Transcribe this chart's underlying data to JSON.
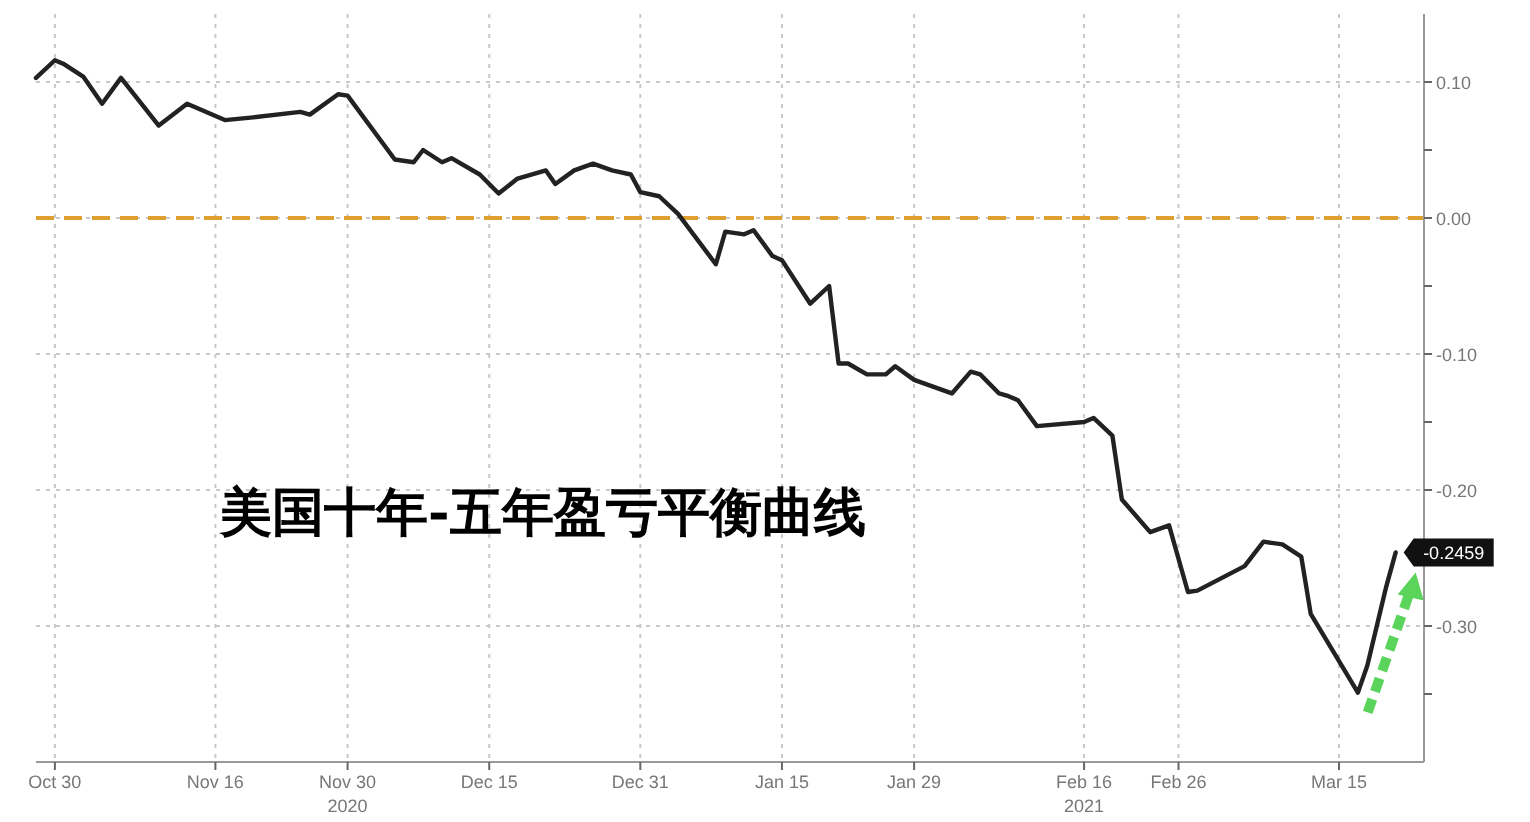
{
  "chart_data": {
    "type": "line",
    "title": "美国十年-五年盈亏平衡曲线",
    "series": [
      {
        "color": "#222222",
        "x": [
          "2020-10-28",
          "2020-10-30",
          "2020-10-31",
          "2020-11-02",
          "2020-11-04",
          "2020-11-06",
          "2020-11-10",
          "2020-11-13",
          "2020-11-17",
          "2020-11-20",
          "2020-11-25",
          "2020-11-26",
          "2020-11-29",
          "2020-11-30",
          "2020-12-05",
          "2020-12-07",
          "2020-12-08",
          "2020-12-10",
          "2020-12-11",
          "2020-12-14",
          "2020-12-16",
          "2020-12-18",
          "2020-12-21",
          "2020-12-22",
          "2020-12-24",
          "2020-12-26",
          "2020-12-28",
          "2020-12-30",
          "2020-12-31",
          "2021-01-02",
          "2021-01-04",
          "2021-01-08",
          "2021-01-09",
          "2021-01-11",
          "2021-01-12",
          "2021-01-14",
          "2021-01-15",
          "2021-01-18",
          "2021-01-20",
          "2021-01-21",
          "2021-01-22",
          "2021-01-24",
          "2021-01-26",
          "2021-01-27",
          "2021-01-29",
          "2021-01-31",
          "2021-02-02",
          "2021-02-04",
          "2021-02-05",
          "2021-02-07",
          "2021-02-08",
          "2021-02-09",
          "2021-02-11",
          "2021-02-16",
          "2021-02-17",
          "2021-02-19",
          "2021-02-20",
          "2021-02-23",
          "2021-02-25",
          "2021-02-27",
          "2021-02-28",
          "2021-03-05",
          "2021-03-07",
          "2021-03-09",
          "2021-03-11",
          "2021-03-12",
          "2021-03-17",
          "2021-03-18",
          "2021-03-20",
          "2021-03-21"
        ],
        "values": [
          0.103,
          0.116,
          0.113,
          0.104,
          0.084,
          0.103,
          0.068,
          0.084,
          0.072,
          0.074,
          0.078,
          0.076,
          0.091,
          0.09,
          0.043,
          0.041,
          0.05,
          0.041,
          0.044,
          0.032,
          0.018,
          0.029,
          0.035,
          0.025,
          0.035,
          0.04,
          0.035,
          0.032,
          0.019,
          0.016,
          0.003,
          -0.034,
          -0.01,
          -0.012,
          -0.009,
          -0.028,
          -0.031,
          -0.063,
          -0.05,
          -0.107,
          -0.107,
          -0.115,
          -0.115,
          -0.109,
          -0.119,
          -0.124,
          -0.129,
          -0.113,
          -0.115,
          -0.129,
          -0.131,
          -0.134,
          -0.153,
          -0.15,
          -0.147,
          -0.16,
          -0.207,
          -0.231,
          -0.226,
          -0.275,
          -0.274,
          -0.256,
          -0.238,
          -0.24,
          -0.249,
          -0.291,
          -0.349,
          -0.329,
          -0.271,
          -0.2459
        ],
        "value_labels": [
          null,
          null,
          null,
          null,
          null,
          null,
          null,
          null,
          null,
          null,
          null,
          null,
          null,
          null,
          null,
          null,
          null,
          null,
          null,
          null,
          null,
          null,
          null,
          null,
          null,
          null,
          null,
          null,
          null,
          null,
          null,
          null,
          null,
          null,
          null,
          null,
          null,
          null,
          null,
          null,
          null,
          null,
          null,
          null,
          null,
          null,
          null,
          null,
          null,
          null,
          null,
          null,
          null,
          null,
          null,
          null,
          null,
          null,
          null,
          null,
          null,
          null,
          null,
          null,
          null,
          null,
          null,
          null,
          null,
          "-0.2459"
        ]
      }
    ],
    "xlim": [
      "2020-10-28",
      "2021-03-24"
    ],
    "xticks": [
      {
        "value": "2020-10-30",
        "label": "Oct 30"
      },
      {
        "value": "2020-11-16",
        "label": "Nov 16"
      },
      {
        "value": "2020-11-30",
        "label": "Nov 30\n2020"
      },
      {
        "value": "2020-12-15",
        "label": "Dec 15"
      },
      {
        "value": "2020-12-31",
        "label": "Dec 31"
      },
      {
        "value": "2021-01-15",
        "label": "Jan 15"
      },
      {
        "value": "2021-01-29",
        "label": "Jan 29"
      },
      {
        "value": "2021-02-16",
        "label": "Feb 16\n2021"
      },
      {
        "value": "2021-02-26",
        "label": "Feb 26"
      },
      {
        "value": "2021-03-15",
        "label": "Mar 15"
      }
    ],
    "ylim": [
      -0.4,
      0.15
    ],
    "yticks": [
      {
        "value": 0.1,
        "label": "0.10"
      },
      {
        "value": 0.05,
        "label": null
      },
      {
        "value": 0,
        "label": "0.00"
      },
      {
        "value": -0.05,
        "label": null
      },
      {
        "value": -0.1,
        "label": "-0.10"
      },
      {
        "value": -0.15,
        "label": null
      },
      {
        "value": -0.2,
        "label": "-0.20"
      },
      {
        "value": -0.25,
        "label": null
      },
      {
        "value": -0.3,
        "label": "-0.30"
      },
      {
        "value": -0.35,
        "label": null
      }
    ],
    "ref_lines": [
      {
        "axis": "y",
        "value": 0,
        "color": "#e0a030",
        "line_style": "dashed"
      }
    ],
    "grid": true,
    "marker": "none",
    "line_style": "solid"
  }
}
